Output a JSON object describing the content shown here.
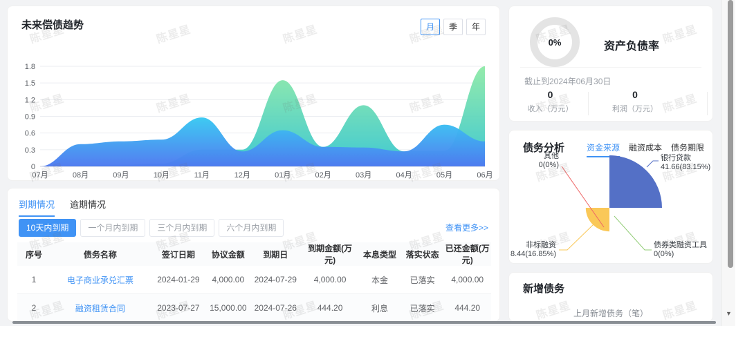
{
  "watermark": "陈星星",
  "trend": {
    "title": "未来偿债趋势",
    "periods": [
      {
        "label": "月",
        "active": true
      },
      {
        "label": "季",
        "active": false
      },
      {
        "label": "年",
        "active": false
      }
    ]
  },
  "chart_data": [
    {
      "type": "area",
      "title": "未来偿债趋势",
      "x": [
        "07月",
        "08月",
        "09月",
        "10月",
        "11月",
        "12月",
        "01月",
        "02月",
        "03月",
        "04月",
        "05月",
        "06月"
      ],
      "series": [
        {
          "name": "green-area",
          "color_top": "#8BE9A4",
          "color_bottom": "#2FC4CE",
          "values": [
            0,
            0.02,
            0.03,
            0.05,
            0.3,
            0.3,
            1.55,
            0.35,
            1.1,
            0.27,
            0.28,
            1.8
          ]
        },
        {
          "name": "blue-area",
          "color_top": "#38C9F2",
          "color_bottom": "#4E79F0",
          "values": [
            0,
            0.4,
            0.45,
            0.48,
            0.88,
            0.27,
            0.65,
            0.35,
            0.34,
            0.27,
            0.75,
            0.45
          ]
        }
      ],
      "ylim": [
        0,
        1.8
      ],
      "yticks": [
        0,
        0.3,
        0.6,
        0.9,
        1.2,
        1.5,
        1.8
      ],
      "grid": true,
      "legend": false
    },
    {
      "type": "donut-gauge",
      "value": 0,
      "display": "0%",
      "ring_color": "#e4e4e4"
    },
    {
      "type": "pie",
      "rose": true,
      "items": [
        {
          "name": "银行贷款",
          "value": 41.66,
          "pct": "83.15%",
          "display": "41.66(83.15%)",
          "color": "#5470C6"
        },
        {
          "name": "债券类融资工具",
          "value": 0,
          "pct": "0%",
          "display": "0(0%)",
          "color": "#91CC75"
        },
        {
          "name": "非标融资",
          "value": 8.44,
          "pct": "16.85%",
          "display": "8.44(16.85%)",
          "color": "#FAC858"
        },
        {
          "name": "其他",
          "value": 0,
          "pct": "0%",
          "display": "0(0%)",
          "color": "#EE6666"
        }
      ]
    }
  ],
  "gauge": {
    "title": "资产负债率",
    "as_of": "截止到2024年06月30日",
    "stats": [
      {
        "value": "0",
        "label": "收入（万元）"
      },
      {
        "value": "0",
        "label": "利润（万元）"
      }
    ]
  },
  "analysis": {
    "title": "债务分析",
    "tabs": [
      {
        "label": "资金来源",
        "active": true
      },
      {
        "label": "融资成本",
        "active": false
      },
      {
        "label": "债务期限",
        "active": false
      }
    ]
  },
  "maturity": {
    "tabs": [
      {
        "label": "到期情况",
        "active": true
      },
      {
        "label": "逾期情况",
        "active": false
      }
    ],
    "chips": [
      {
        "label": "10天内到期",
        "active": true
      },
      {
        "label": "一个月内到期",
        "active": false
      },
      {
        "label": "三个月内到期",
        "active": false
      },
      {
        "label": "六个月内到期",
        "active": false
      }
    ],
    "view_more": "查看更多>>",
    "table": {
      "headers": [
        "序号",
        "债务名称",
        "签订日期",
        "协议金额",
        "到期日",
        "到期金额(万元)",
        "本息类型",
        "落实状态",
        "已还金额(万元)"
      ],
      "rows": [
        {
          "no": "1",
          "name": "电子商业承兑汇票",
          "sign_date": "2024-01-29",
          "agreement_amount": "4,000.00",
          "due_date": "2024-07-29",
          "due_amount": "4,000.00",
          "type": "本金",
          "status": "已落实",
          "repaid": "4,000.00"
        },
        {
          "no": "2",
          "name": "融资租赁合同",
          "sign_date": "2023-07-27",
          "agreement_amount": "15,000.00",
          "due_date": "2024-07-26",
          "due_amount": "444.20",
          "type": "利息",
          "status": "已落实",
          "repaid": "444.20"
        }
      ]
    }
  },
  "new_debt": {
    "title": "新增债务",
    "subtitle": "上月新增债务（笔）"
  }
}
